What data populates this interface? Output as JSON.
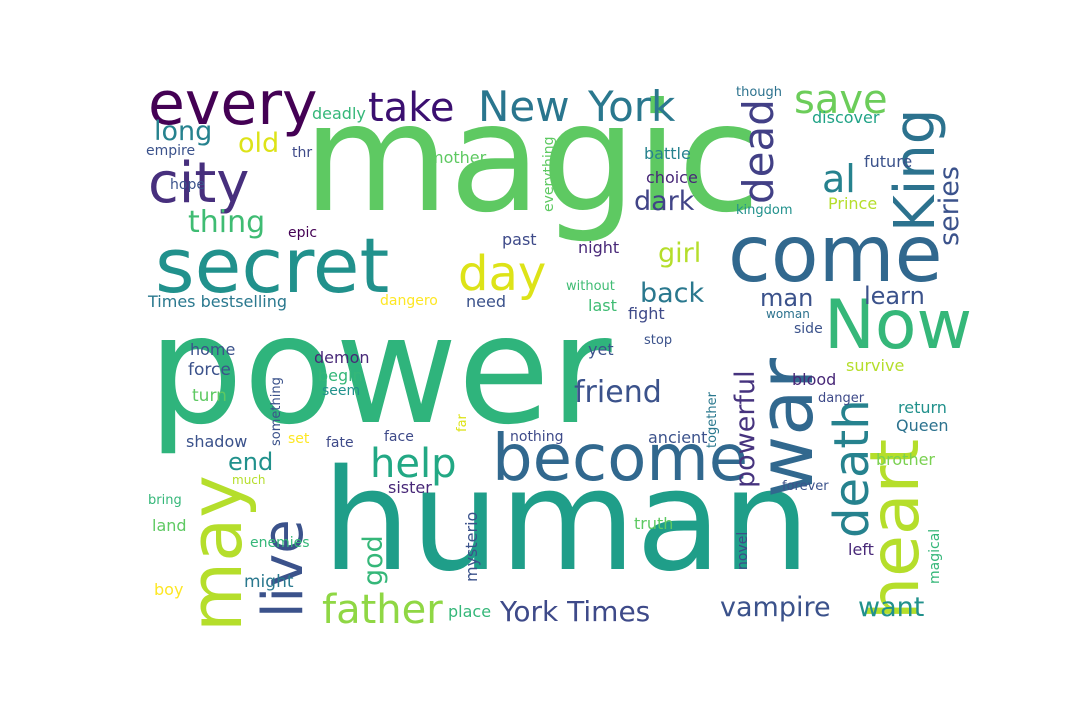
{
  "words": [
    {
      "text": "power",
      "color": "#2fb47c"
    },
    {
      "text": "magic",
      "color": "#5ec962"
    },
    {
      "text": "human",
      "color": "#1f9e89"
    },
    {
      "text": "secret",
      "color": "#21918c"
    },
    {
      "text": "come",
      "color": "#31688e"
    },
    {
      "text": "war",
      "color": "#31688e"
    },
    {
      "text": "become",
      "color": "#31688e"
    },
    {
      "text": "may",
      "color": "#b5de2b"
    },
    {
      "text": "Now",
      "color": "#35b779"
    },
    {
      "text": "heart",
      "color": "#b5de2b"
    },
    {
      "text": "every",
      "color": "#440154"
    },
    {
      "text": "city",
      "color": "#472f7d"
    },
    {
      "text": "live",
      "color": "#3b528b"
    },
    {
      "text": "King",
      "color": "#2c728e"
    },
    {
      "text": "day",
      "color": "#dde318"
    },
    {
      "text": "death",
      "color": "#26828e"
    },
    {
      "text": "New",
      "color": "#2a768e"
    },
    {
      "text": "York",
      "color": "#2a788e"
    },
    {
      "text": "take",
      "color": "#3b0f70"
    },
    {
      "text": "save",
      "color": "#6ccd5a"
    },
    {
      "text": "dead",
      "color": "#424086"
    },
    {
      "text": "help",
      "color": "#22a884"
    },
    {
      "text": "father",
      "color": "#8fd744"
    },
    {
      "text": "al",
      "color": "#26828e"
    },
    {
      "text": "York Times",
      "color": "#3e4a89"
    },
    {
      "text": "vampire",
      "color": "#3b528b"
    },
    {
      "text": "powerful",
      "color": "#46337e"
    },
    {
      "text": "friend",
      "color": "#3b528b"
    },
    {
      "text": "series",
      "color": "#3b528b"
    },
    {
      "text": "thing",
      "color": "#3fbc73"
    },
    {
      "text": "girl",
      "color": "#b5de2b"
    },
    {
      "text": "back",
      "color": "#2a788e"
    },
    {
      "text": "dark",
      "color": "#414487"
    },
    {
      "text": "god",
      "color": "#35b779"
    },
    {
      "text": "end",
      "color": "#21918c"
    },
    {
      "text": "want",
      "color": "#21918c"
    },
    {
      "text": "long",
      "color": "#26828e"
    },
    {
      "text": "old",
      "color": "#dde318"
    },
    {
      "text": "man",
      "color": "#3b528b"
    },
    {
      "text": "learn",
      "color": "#3b528b"
    },
    {
      "text": "deadly",
      "color": "#35b779"
    },
    {
      "text": "discover",
      "color": "#20a386"
    },
    {
      "text": "though",
      "color": "#2c728e"
    },
    {
      "text": "empire",
      "color": "#3b528b"
    },
    {
      "text": "thr",
      "color": "#3e4a89"
    },
    {
      "text": "mother",
      "color": "#5ec962"
    },
    {
      "text": "battle",
      "color": "#26828e"
    },
    {
      "text": "future",
      "color": "#3b528b"
    },
    {
      "text": "choice",
      "color": "#482878"
    },
    {
      "text": "hope",
      "color": "#3b528b"
    },
    {
      "text": "everything",
      "color": "#5ec962"
    },
    {
      "text": "Prince",
      "color": "#b5de2b"
    },
    {
      "text": "kingdom",
      "color": "#21918c"
    },
    {
      "text": "epic",
      "color": "#440154"
    },
    {
      "text": "past",
      "color": "#3e4a89"
    },
    {
      "text": "night",
      "color": "#482878"
    },
    {
      "text": "Times bestselling",
      "color": "#2a788e"
    },
    {
      "text": "dangero",
      "color": "#fde725"
    },
    {
      "text": "need",
      "color": "#3b528b"
    },
    {
      "text": "without",
      "color": "#3fbc73"
    },
    {
      "text": "last",
      "color": "#3fbc73"
    },
    {
      "text": "fight",
      "color": "#3e4a89"
    },
    {
      "text": "woman",
      "color": "#2c728e"
    },
    {
      "text": "side",
      "color": "#3b528b"
    },
    {
      "text": "home",
      "color": "#3b528b"
    },
    {
      "text": "demon",
      "color": "#482878"
    },
    {
      "text": "stop",
      "color": "#3b528b"
    },
    {
      "text": "yet",
      "color": "#3b528b"
    },
    {
      "text": "force",
      "color": "#3b528b"
    },
    {
      "text": "begin",
      "color": "#35b779"
    },
    {
      "text": "survive",
      "color": "#b5de2b"
    },
    {
      "text": "something",
      "color": "#3b528b"
    },
    {
      "text": "seem",
      "color": "#21918c"
    },
    {
      "text": "blood",
      "color": "#482878"
    },
    {
      "text": "together",
      "color": "#2a788e"
    },
    {
      "text": "turn",
      "color": "#5ec962"
    },
    {
      "text": "danger",
      "color": "#3e4a89"
    },
    {
      "text": "return",
      "color": "#21918c"
    },
    {
      "text": "far",
      "color": "#dde318"
    },
    {
      "text": "shadow",
      "color": "#3b528b"
    },
    {
      "text": "set",
      "color": "#fde725"
    },
    {
      "text": "fate",
      "color": "#3e4a89"
    },
    {
      "text": "face",
      "color": "#3e4a89"
    },
    {
      "text": "nothing",
      "color": "#3e4a89"
    },
    {
      "text": "ancient",
      "color": "#3b528b"
    },
    {
      "text": "Queen",
      "color": "#2c728e"
    },
    {
      "text": "much",
      "color": "#b5de2b"
    },
    {
      "text": "sister",
      "color": "#482878"
    },
    {
      "text": "forever",
      "color": "#3b528b"
    },
    {
      "text": "brother",
      "color": "#7ad151"
    },
    {
      "text": "bring",
      "color": "#35b779"
    },
    {
      "text": "mysterio",
      "color": "#3b528b"
    },
    {
      "text": "land",
      "color": "#5ec962"
    },
    {
      "text": "truth",
      "color": "#5ec962"
    },
    {
      "text": "novel",
      "color": "#3e4a89"
    },
    {
      "text": "magical",
      "color": "#35b779"
    },
    {
      "text": "enemies",
      "color": "#35b779"
    },
    {
      "text": "left",
      "color": "#482878"
    },
    {
      "text": "might",
      "color": "#2a788e"
    },
    {
      "text": "boy",
      "color": "#fde725"
    },
    {
      "text": "place",
      "color": "#35b779"
    }
  ]
}
